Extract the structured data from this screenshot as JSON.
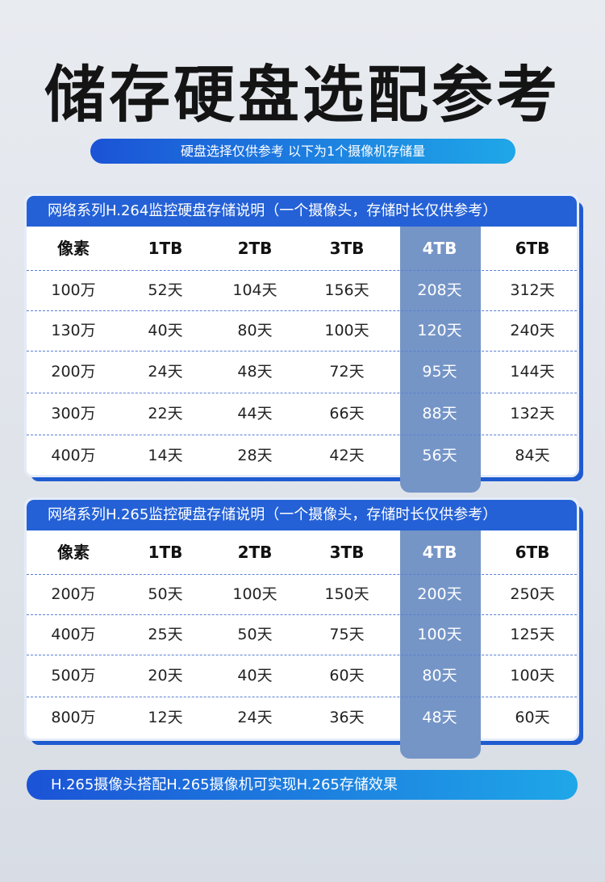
{
  "title": "储存硬盘选配参考",
  "subtitle": "硬盘选择仅供参考 以下为1个摄像机存储量",
  "tables": [
    {
      "header": "网络系列H.264监控硬盘存储说明（一个摄像头，存储时长仅供参考）",
      "columns": [
        "像素",
        "1TB",
        "2TB",
        "3TB",
        "4TB",
        "6TB"
      ],
      "highlight_col": 4,
      "rows": [
        [
          "100万",
          "52天",
          "104天",
          "156天",
          "208天",
          "312天"
        ],
        [
          "130万",
          "40天",
          "80天",
          "100天",
          "120天",
          "240天"
        ],
        [
          "200万",
          "24天",
          "48天",
          "72天",
          "95天",
          "144天"
        ],
        [
          "300万",
          "22天",
          "44天",
          "66天",
          "88天",
          "132天"
        ],
        [
          "400万",
          "14天",
          "28天",
          "42天",
          "56天",
          "84天"
        ]
      ]
    },
    {
      "header": "网络系列H.265监控硬盘存储说明（一个摄像头，存储时长仅供参考）",
      "columns": [
        "像素",
        "1TB",
        "2TB",
        "3TB",
        "4TB",
        "6TB"
      ],
      "highlight_col": 4,
      "rows": [
        [
          "200万",
          "50天",
          "100天",
          "150天",
          "200天",
          "250天"
        ],
        [
          "400万",
          "25天",
          "50天",
          "75天",
          "100天",
          "125天"
        ],
        [
          "500万",
          "20天",
          "40天",
          "60天",
          "80天",
          "100天"
        ],
        [
          "800万",
          "12天",
          "24天",
          "36天",
          "48天",
          "60天"
        ]
      ]
    }
  ],
  "footer": "H.265摄像头搭配H.265摄像机可实现H.265存储效果",
  "colors": {
    "primary": "#2461d6",
    "highlight": "#7595c7"
  }
}
